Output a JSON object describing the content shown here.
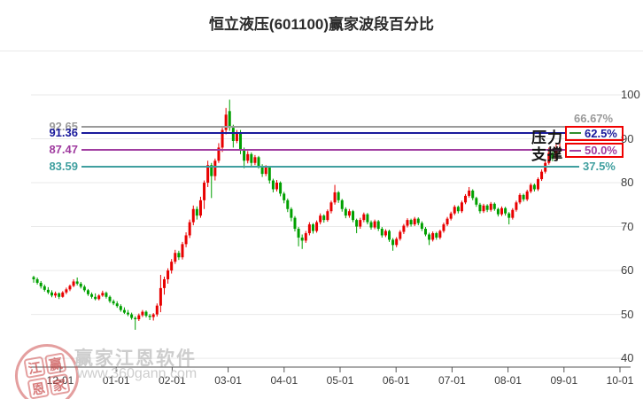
{
  "title": "恒立液压(601100)赢家波段百分比",
  "labels": {
    "pressure": "压力",
    "support": "支撑"
  },
  "watermark": {
    "logo_chars": [
      "江",
      "赢",
      "恩",
      "家"
    ],
    "line1": "赢家江恩软件",
    "line2": "www.360gann.com"
  },
  "colors": {
    "up": "#e80000",
    "down": "#00a000",
    "grid": "#e9e9e9",
    "axis": "#555555",
    "box_border": "#f00000",
    "tick_text": "#3c3c3c"
  },
  "chart_data": {
    "type": "candlestick",
    "title": "恒立液压(601100)赢家波段百分比",
    "xlabel": "",
    "ylabel": "",
    "x_tick_labels": [
      "12-01",
      "01-01",
      "02-01",
      "03-01",
      "04-01",
      "05-01",
      "06-01",
      "07-01",
      "08-01",
      "09-01",
      "10-01"
    ],
    "y_ticks": [
      100,
      90,
      80,
      70,
      60,
      50,
      40
    ],
    "ylim": [
      38,
      100
    ],
    "grid": true,
    "legend": "none",
    "levels": [
      {
        "label": "92.65",
        "value": 92.65,
        "percent_label": "66.67%",
        "color": "#9a9a9a",
        "boxed": false,
        "role": "",
        "dash_color": "#9a9a9a",
        "line_end": 645,
        "pct_x": 648,
        "pct_above_box": true
      },
      {
        "label": "91.36",
        "value": 91.36,
        "percent_label": "62.5%",
        "color": "#1a1a9c",
        "boxed": true,
        "role": "压力",
        "dash_color": "#2f8f2f",
        "line_end": 638,
        "pct_x": 0,
        "pct_above_box": false
      },
      {
        "label": "87.47",
        "value": 87.47,
        "percent_label": "50.0%",
        "color": "#a03ca0",
        "boxed": true,
        "role": "支撑",
        "dash_color": "#a03ca0",
        "line_end": 638,
        "pct_x": 0,
        "pct_above_box": false
      },
      {
        "label": "83.59",
        "value": 83.59,
        "percent_label": "37.5%",
        "color": "#3f9f9f",
        "boxed": false,
        "role": "",
        "dash_color": "#3f9f9f",
        "line_end": 654,
        "pct_x": 658,
        "pct_above_box": false
      }
    ],
    "plot": {
      "x_start": 38,
      "x_step": 4.097,
      "y_top": 107,
      "y_bottom": 414,
      "v_top": 100,
      "v_bottom": 38,
      "x_tick_start": 68,
      "x_tick_step": 63.2,
      "axis_x0": 35,
      "axis_x1": 712
    },
    "candles": [
      [
        58.5,
        58.8,
        57.2,
        58.0
      ],
      [
        58.0,
        58.4,
        56.8,
        57.2
      ],
      [
        57.2,
        57.6,
        55.9,
        56.4
      ],
      [
        56.4,
        56.8,
        55.2,
        55.6
      ],
      [
        55.6,
        56.2,
        54.6,
        55.0
      ],
      [
        55.0,
        55.5,
        53.9,
        54.3
      ],
      [
        54.3,
        55.2,
        53.8,
        54.8
      ],
      [
        54.8,
        55.0,
        53.5,
        54.0
      ],
      [
        54.0,
        55.3,
        53.8,
        55.0
      ],
      [
        55.0,
        56.1,
        54.6,
        55.7
      ],
      [
        55.7,
        56.8,
        55.3,
        56.5
      ],
      [
        56.5,
        58.0,
        56.2,
        57.5
      ],
      [
        57.5,
        58.4,
        56.6,
        57.0
      ],
      [
        57.0,
        57.4,
        55.9,
        56.3
      ],
      [
        56.3,
        56.7,
        55.1,
        55.5
      ],
      [
        55.5,
        55.8,
        54.2,
        54.6
      ],
      [
        54.6,
        55.0,
        53.6,
        54.0
      ],
      [
        54.0,
        54.8,
        53.2,
        53.5
      ],
      [
        53.5,
        54.6,
        53.2,
        54.3
      ],
      [
        54.3,
        55.4,
        54.0,
        54.9
      ],
      [
        54.9,
        55.2,
        53.6,
        54.0
      ],
      [
        54.0,
        54.3,
        52.6,
        53.0
      ],
      [
        53.0,
        53.4,
        52.1,
        52.5
      ],
      [
        52.5,
        53.0,
        51.5,
        51.9
      ],
      [
        51.9,
        52.3,
        50.6,
        51.0
      ],
      [
        51.0,
        51.6,
        50.1,
        50.4
      ],
      [
        50.4,
        51.0,
        49.6,
        50.0
      ],
      [
        50.0,
        50.4,
        48.8,
        49.2
      ],
      [
        49.2,
        49.6,
        46.5,
        48.9
      ],
      [
        48.9,
        50.2,
        48.5,
        49.8
      ],
      [
        49.8,
        51.0,
        49.4,
        50.6
      ],
      [
        50.6,
        50.9,
        49.3,
        49.7
      ],
      [
        49.7,
        50.1,
        48.7,
        49.4
      ],
      [
        49.4,
        50.3,
        48.6,
        50.0
      ],
      [
        50.0,
        52.5,
        49.5,
        52.0
      ],
      [
        52.0,
        59.0,
        50.5,
        56.0
      ],
      [
        56.0,
        58.6,
        54.5,
        58.0
      ],
      [
        58.0,
        60.5,
        57.0,
        60.0
      ],
      [
        60.0,
        62.6,
        59.3,
        62.0
      ],
      [
        62.0,
        64.7,
        61.5,
        64.0
      ],
      [
        64.0,
        64.5,
        62.4,
        63.0
      ],
      [
        63.0,
        66.5,
        62.5,
        66.0
      ],
      [
        66.0,
        68.7,
        65.3,
        68.0
      ],
      [
        68.0,
        71.6,
        67.4,
        71.0
      ],
      [
        71.0,
        74.8,
        70.3,
        74.0
      ],
      [
        74.0,
        74.6,
        71.6,
        72.5
      ],
      [
        72.5,
        76.8,
        72.0,
        76.0
      ],
      [
        76.0,
        80.5,
        74.0,
        80.0
      ],
      [
        80.0,
        85.0,
        79.0,
        84.0
      ],
      [
        84.0,
        84.5,
        76.5,
        81.5
      ],
      [
        81.5,
        85.5,
        80.5,
        85.0
      ],
      [
        85.0,
        89.0,
        84.5,
        88.0
      ],
      [
        88.0,
        92.5,
        87.0,
        92.0
      ],
      [
        92.0,
        97.0,
        91.0,
        95.5
      ],
      [
        96.3,
        98.9,
        91.8,
        92.5
      ],
      [
        92.5,
        93.2,
        88.0,
        89.5
      ],
      [
        89.5,
        92.0,
        89.0,
        91.5
      ],
      [
        91.5,
        92.0,
        86.5,
        87.5
      ],
      [
        87.5,
        88.0,
        83.3,
        85.0
      ],
      [
        85.0,
        87.2,
        84.4,
        86.5
      ],
      [
        86.5,
        86.9,
        83.8,
        84.5
      ],
      [
        84.5,
        86.3,
        84.0,
        85.8
      ],
      [
        85.8,
        86.1,
        83.2,
        83.8
      ],
      [
        83.8,
        84.2,
        81.3,
        82.0
      ],
      [
        82.0,
        84.0,
        81.5,
        83.5
      ],
      [
        83.5,
        83.8,
        79.8,
        80.5
      ],
      [
        80.5,
        80.9,
        77.8,
        78.5
      ],
      [
        78.5,
        80.6,
        78.0,
        80.0
      ],
      [
        80.0,
        80.3,
        76.9,
        77.5
      ],
      [
        77.5,
        77.9,
        75.3,
        76.0
      ],
      [
        76.0,
        76.4,
        73.3,
        74.0
      ],
      [
        74.0,
        74.4,
        71.2,
        72.0
      ],
      [
        72.0,
        72.4,
        68.9,
        69.5
      ],
      [
        69.5,
        69.9,
        65.5,
        67.5
      ],
      [
        67.5,
        68.2,
        64.9,
        66.8
      ],
      [
        66.8,
        69.0,
        66.3,
        68.5
      ],
      [
        68.5,
        71.0,
        68.0,
        70.5
      ],
      [
        70.5,
        70.8,
        68.4,
        69.0
      ],
      [
        69.0,
        71.4,
        68.6,
        71.0
      ],
      [
        71.0,
        73.0,
        70.5,
        72.5
      ],
      [
        72.5,
        72.8,
        70.9,
        71.5
      ],
      [
        71.5,
        73.9,
        71.1,
        73.5
      ],
      [
        73.5,
        75.9,
        73.0,
        75.5
      ],
      [
        75.5,
        79.5,
        75.0,
        77.8
      ],
      [
        77.8,
        78.1,
        75.4,
        76.0
      ],
      [
        76.0,
        76.3,
        73.4,
        74.0
      ],
      [
        74.0,
        74.4,
        71.9,
        72.5
      ],
      [
        72.5,
        74.0,
        72.0,
        73.5
      ],
      [
        73.5,
        73.8,
        71.0,
        71.5
      ],
      [
        71.5,
        71.8,
        68.5,
        70.0
      ],
      [
        70.0,
        72.0,
        69.5,
        71.5
      ],
      [
        71.5,
        73.2,
        71.0,
        72.8
      ],
      [
        72.8,
        73.1,
        70.5,
        71.0
      ],
      [
        71.0,
        71.4,
        69.3,
        69.8
      ],
      [
        69.8,
        71.6,
        69.4,
        71.2
      ],
      [
        71.2,
        71.5,
        69.0,
        69.5
      ],
      [
        69.5,
        69.9,
        67.5,
        68.0
      ],
      [
        68.0,
        69.4,
        67.6,
        69.0
      ],
      [
        69.0,
        69.3,
        66.5,
        67.0
      ],
      [
        67.0,
        67.4,
        64.5,
        65.8
      ],
      [
        65.8,
        67.6,
        65.3,
        67.2
      ],
      [
        67.2,
        69.2,
        66.8,
        68.8
      ],
      [
        68.8,
        70.6,
        68.3,
        70.2
      ],
      [
        70.2,
        71.9,
        69.8,
        71.5
      ],
      [
        71.5,
        71.8,
        70.0,
        70.5
      ],
      [
        70.5,
        72.2,
        70.1,
        71.8
      ],
      [
        71.8,
        72.1,
        70.3,
        70.8
      ],
      [
        70.8,
        71.2,
        69.0,
        69.5
      ],
      [
        69.5,
        69.9,
        67.8,
        68.2
      ],
      [
        68.2,
        68.6,
        65.8,
        67.0
      ],
      [
        67.0,
        68.9,
        66.6,
        68.5
      ],
      [
        68.5,
        68.8,
        67.0,
        67.5
      ],
      [
        67.5,
        69.3,
        67.1,
        69.0
      ],
      [
        69.0,
        70.9,
        68.6,
        70.5
      ],
      [
        70.5,
        72.2,
        70.1,
        71.8
      ],
      [
        71.8,
        73.4,
        71.4,
        73.0
      ],
      [
        73.0,
        74.9,
        72.6,
        74.5
      ],
      [
        74.5,
        74.8,
        73.0,
        73.5
      ],
      [
        73.5,
        75.9,
        73.1,
        75.5
      ],
      [
        75.5,
        77.4,
        75.1,
        77.0
      ],
      [
        77.0,
        79.0,
        76.6,
        78.2
      ],
      [
        78.2,
        78.5,
        76.0,
        76.5
      ],
      [
        76.5,
        76.8,
        74.5,
        75.0
      ],
      [
        75.0,
        75.4,
        73.0,
        73.5
      ],
      [
        73.5,
        75.2,
        73.1,
        74.8
      ],
      [
        74.8,
        75.1,
        73.3,
        73.8
      ],
      [
        73.8,
        75.6,
        73.4,
        75.2
      ],
      [
        75.2,
        75.5,
        73.6,
        74.0
      ],
      [
        74.0,
        74.3,
        72.3,
        72.8
      ],
      [
        72.8,
        74.6,
        72.4,
        74.2
      ],
      [
        74.2,
        74.5,
        72.5,
        73.0
      ],
      [
        73.0,
        73.3,
        70.5,
        72.0
      ],
      [
        72.0,
        74.2,
        71.6,
        73.8
      ],
      [
        73.8,
        75.9,
        73.4,
        75.5
      ],
      [
        75.5,
        77.6,
        75.1,
        77.2
      ],
      [
        77.2,
        77.5,
        75.7,
        76.2
      ],
      [
        76.2,
        78.4,
        75.8,
        78.0
      ],
      [
        78.0,
        79.9,
        77.6,
        79.5
      ],
      [
        79.5,
        79.8,
        78.0,
        78.5
      ],
      [
        78.5,
        81.2,
        78.1,
        80.8
      ],
      [
        80.8,
        83.0,
        80.4,
        82.5
      ],
      [
        82.5,
        85.0,
        82.1,
        84.5
      ],
      [
        84.5,
        88.0,
        84.1,
        86.8
      ],
      [
        86.8,
        87.1,
        84.9,
        85.5
      ],
      [
        85.5,
        88.8,
        85.1,
        87.2
      ],
      [
        87.2,
        89.8,
        86.6,
        87.8
      ]
    ]
  }
}
